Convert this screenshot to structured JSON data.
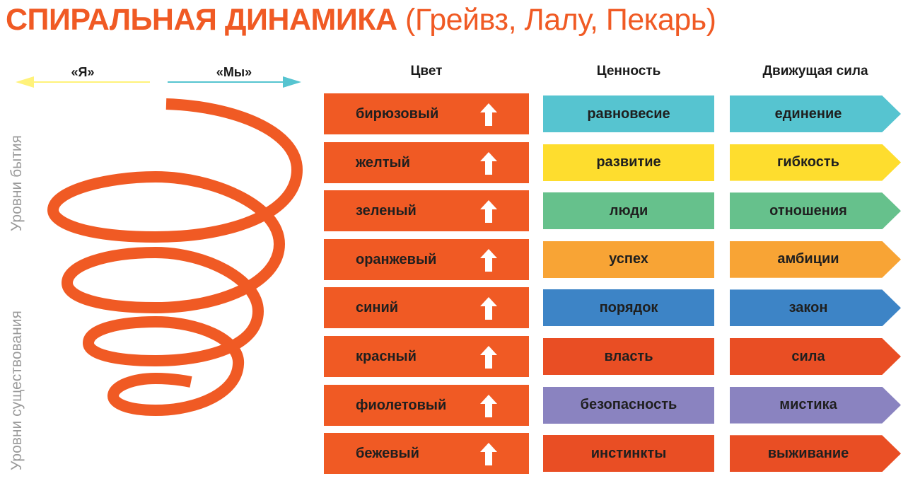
{
  "title": {
    "main": "СПИРАЛЬНАЯ ДИНАМИКА",
    "authors": "(Грейвз, Лалу, Пекарь)",
    "color": "#f05a24"
  },
  "directions": {
    "left": "«Я»",
    "right": "«Мы»",
    "left_color": "#fff27a",
    "right_color": "#56c4d0"
  },
  "side_labels": {
    "upper": "Уровни бытия",
    "lower": "Уровни существования"
  },
  "spiral_color": "#f05a24",
  "headers": {
    "color": "Цвет",
    "value": "Ценность",
    "drive": "Движущая сила"
  },
  "rows": [
    {
      "color": "бирюзовый",
      "value": "равновесие",
      "drive": "единение",
      "fill": "#56c4d0",
      "icon": "arrow-up-icon"
    },
    {
      "color": "желтый",
      "value": "развитие",
      "drive": "гибкость",
      "fill": "#fedd2e",
      "icon": "arrow-up-icon"
    },
    {
      "color": "зеленый",
      "value": "люди",
      "drive": "отношения",
      "fill": "#66c18c",
      "icon": "arrow-up-icon"
    },
    {
      "color": "оранжевый",
      "value": "успех",
      "drive": "амбиции",
      "fill": "#f8a435",
      "icon": "arrow-up-icon"
    },
    {
      "color": "синий",
      "value": "порядок",
      "drive": "закон",
      "fill": "#3d84c6",
      "icon": "arrow-up-icon"
    },
    {
      "color": "красный",
      "value": "власть",
      "drive": "сила",
      "fill": "#e94e24",
      "icon": "arrow-up-icon"
    },
    {
      "color": "фиолетовый",
      "value": "безопасность",
      "drive": "мистика",
      "fill": "#8a83c0",
      "icon": "arrow-up-icon"
    },
    {
      "color": "бежевый",
      "value": "инстинкты",
      "drive": "выживание",
      "fill": "#e94e24",
      "icon": "arrow-up-icon"
    }
  ]
}
